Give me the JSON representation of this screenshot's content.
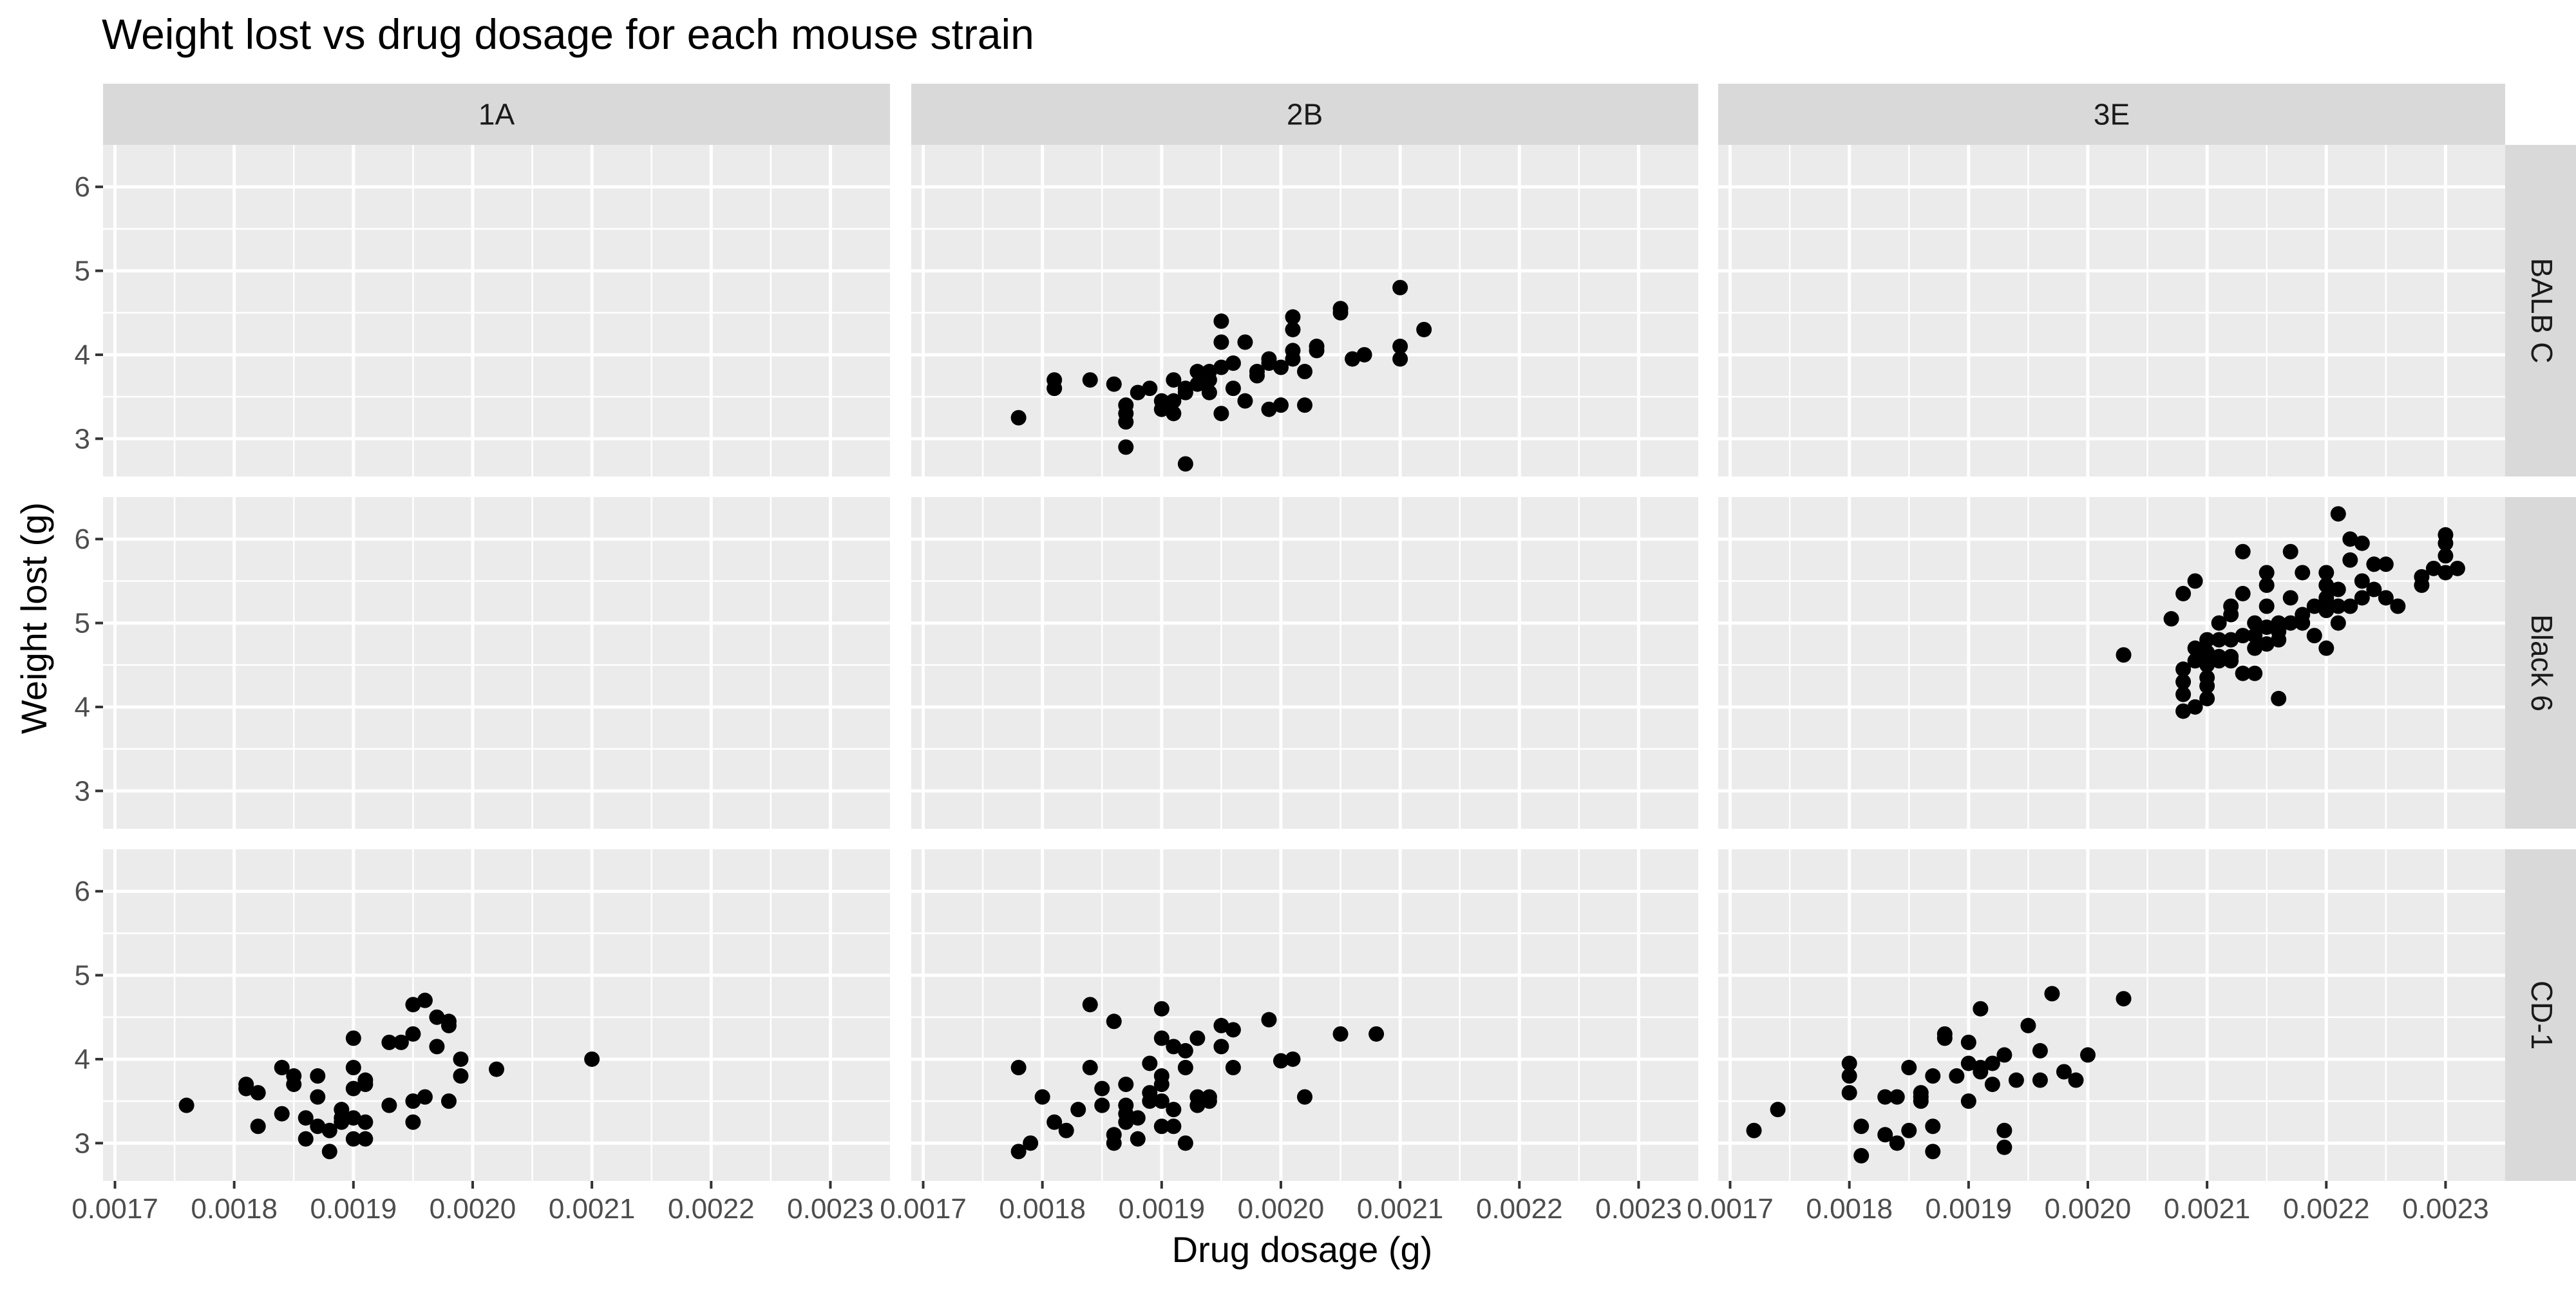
{
  "chart_data": {
    "type": "scatter",
    "title": "Weight lost vs drug dosage for each mouse strain",
    "xlabel": "Drug dosage (g)",
    "ylabel": "Weight lost (g)",
    "xlim": [
      0.00169,
      0.00235
    ],
    "ylim": [
      2.55,
      6.5
    ],
    "x_ticks": [
      0.0017,
      0.0018,
      0.0019,
      0.002,
      0.0021,
      0.0022,
      0.0023
    ],
    "x_tick_labels": [
      "0.0017",
      "0.0018",
      "0.0019",
      "0.0020",
      "0.0021",
      "0.0022",
      "0.0023"
    ],
    "y_ticks": [
      3,
      4,
      5,
      6
    ],
    "y_tick_labels": [
      "3",
      "4",
      "5",
      "6"
    ],
    "grid": true,
    "facet_columns": [
      "1A",
      "2B",
      "3E"
    ],
    "facet_rows": [
      "BALB C",
      "Black 6",
      "CD-1"
    ],
    "panels": [
      {
        "row": "BALB C",
        "col": "1A",
        "x": [],
        "y": []
      },
      {
        "row": "BALB C",
        "col": "2B",
        "x": [
          0.00178,
          0.00181,
          0.00181,
          0.00184,
          0.00186,
          0.00187,
          0.00187,
          0.00187,
          0.00187,
          0.00188,
          0.00189,
          0.0019,
          0.0019,
          0.00191,
          0.00191,
          0.00191,
          0.00192,
          0.00192,
          0.00193,
          0.00193,
          0.00194,
          0.00194,
          0.00195,
          0.00195,
          0.00195,
          0.00195,
          0.00196,
          0.00196,
          0.00197,
          0.00197,
          0.00198,
          0.00198,
          0.00199,
          0.00199,
          0.00199,
          0.002,
          0.002,
          0.00201,
          0.00201,
          0.00201,
          0.00201,
          0.00202,
          0.00202,
          0.00203,
          0.00203,
          0.00205,
          0.00205,
          0.00206,
          0.00207,
          0.0021,
          0.0021,
          0.0021,
          0.00212,
          0.00192,
          0.00194
        ],
        "y": [
          3.25,
          3.7,
          3.6,
          3.7,
          3.65,
          3.4,
          3.3,
          3.2,
          2.9,
          3.55,
          3.6,
          3.45,
          3.35,
          3.7,
          3.3,
          3.45,
          3.55,
          2.7,
          3.8,
          3.65,
          3.7,
          3.55,
          4.4,
          4.15,
          3.85,
          3.3,
          3.9,
          3.6,
          4.15,
          3.45,
          3.8,
          3.75,
          3.95,
          3.9,
          3.35,
          3.4,
          3.85,
          4.45,
          4.3,
          3.95,
          4.05,
          3.8,
          3.4,
          4.1,
          4.05,
          4.55,
          4.5,
          3.95,
          4.0,
          4.8,
          4.1,
          3.95,
          4.3,
          3.6,
          3.8
        ]
      },
      {
        "row": "BALB C",
        "col": "3E",
        "x": [],
        "y": []
      },
      {
        "row": "Black 6",
        "col": "1A",
        "x": [],
        "y": []
      },
      {
        "row": "Black 6",
        "col": "2B",
        "x": [],
        "y": []
      },
      {
        "row": "Black 6",
        "col": "3E",
        "x": [
          0.00203,
          0.00207,
          0.00208,
          0.00208,
          0.00208,
          0.00208,
          0.00208,
          0.00209,
          0.00209,
          0.00209,
          0.0021,
          0.0021,
          0.0021,
          0.0021,
          0.0021,
          0.0021,
          0.00211,
          0.00211,
          0.00211,
          0.00212,
          0.00212,
          0.00212,
          0.00213,
          0.00213,
          0.00213,
          0.00213,
          0.00214,
          0.00214,
          0.00214,
          0.00215,
          0.00215,
          0.00215,
          0.00215,
          0.00215,
          0.00216,
          0.00216,
          0.00216,
          0.00217,
          0.00217,
          0.00217,
          0.00218,
          0.00218,
          0.00219,
          0.00219,
          0.0022,
          0.0022,
          0.0022,
          0.0022,
          0.0022,
          0.00221,
          0.00221,
          0.00221,
          0.00221,
          0.00222,
          0.00222,
          0.00222,
          0.00223,
          0.00223,
          0.00223,
          0.00224,
          0.00224,
          0.00225,
          0.00225,
          0.00226,
          0.00228,
          0.00228,
          0.00229,
          0.0023,
          0.0023,
          0.0023,
          0.0023,
          0.00231,
          0.0021,
          0.00211,
          0.00212,
          0.00214,
          0.00216,
          0.00218,
          0.00212,
          0.00209
        ],
        "y": [
          4.62,
          5.05,
          5.35,
          4.45,
          4.3,
          4.15,
          3.95,
          5.5,
          4.7,
          4.55,
          4.8,
          4.65,
          4.5,
          4.35,
          4.25,
          4.1,
          4.8,
          4.6,
          4.55,
          4.8,
          5.2,
          4.55,
          5.85,
          5.35,
          4.85,
          4.4,
          4.7,
          4.85,
          4.4,
          5.6,
          5.45,
          5.2,
          4.95,
          4.75,
          4.9,
          5.0,
          4.1,
          5.85,
          5.3,
          5.0,
          5.6,
          5.0,
          5.2,
          4.85,
          5.6,
          5.45,
          5.3,
          5.15,
          4.7,
          6.3,
          5.4,
          5.2,
          5.0,
          6.0,
          5.75,
          5.2,
          5.95,
          5.5,
          5.3,
          5.7,
          5.4,
          5.7,
          5.3,
          5.2,
          5.55,
          5.45,
          5.65,
          6.05,
          5.95,
          5.8,
          5.6,
          5.65,
          4.6,
          5.0,
          5.1,
          5.0,
          4.8,
          5.1,
          4.6,
          4.0
        ]
      },
      {
        "row": "CD-1",
        "col": "1A",
        "x": [
          0.00176,
          0.00181,
          0.00181,
          0.00182,
          0.00184,
          0.00184,
          0.00185,
          0.00186,
          0.00186,
          0.00187,
          0.00187,
          0.00188,
          0.00188,
          0.00189,
          0.00189,
          0.0019,
          0.0019,
          0.0019,
          0.0019,
          0.0019,
          0.00191,
          0.00191,
          0.00191,
          0.00191,
          0.00193,
          0.00193,
          0.00194,
          0.00195,
          0.00195,
          0.00195,
          0.00195,
          0.00196,
          0.00196,
          0.00197,
          0.00197,
          0.00198,
          0.00198,
          0.00198,
          0.00199,
          0.00199,
          0.00202,
          0.0021,
          0.00182,
          0.00185,
          0.00187,
          0.00189
        ],
        "y": [
          3.45,
          3.7,
          3.65,
          3.2,
          3.9,
          3.35,
          3.7,
          3.3,
          3.05,
          3.8,
          3.55,
          3.15,
          2.9,
          3.3,
          3.25,
          4.25,
          3.9,
          3.65,
          3.3,
          3.05,
          3.7,
          3.75,
          3.25,
          3.05,
          4.2,
          3.45,
          4.2,
          4.65,
          4.3,
          3.5,
          3.25,
          4.7,
          3.55,
          4.5,
          4.15,
          4.4,
          4.45,
          3.5,
          4.0,
          3.8,
          3.88,
          4.0,
          3.6,
          3.8,
          3.2,
          3.4
        ]
      },
      {
        "row": "CD-1",
        "col": "2B",
        "x": [
          0.00178,
          0.00178,
          0.00179,
          0.0018,
          0.00181,
          0.00182,
          0.00183,
          0.00184,
          0.00184,
          0.00185,
          0.00185,
          0.00186,
          0.00186,
          0.00186,
          0.00187,
          0.00187,
          0.00187,
          0.00188,
          0.00188,
          0.00189,
          0.00189,
          0.0019,
          0.0019,
          0.0019,
          0.0019,
          0.0019,
          0.0019,
          0.00191,
          0.00191,
          0.00191,
          0.00192,
          0.00192,
          0.00193,
          0.00193,
          0.00193,
          0.00194,
          0.00194,
          0.00195,
          0.00195,
          0.00196,
          0.00196,
          0.00199,
          0.002,
          0.00201,
          0.00202,
          0.00205,
          0.00208,
          0.00187,
          0.00189,
          0.00192
        ],
        "y": [
          3.9,
          2.9,
          3.0,
          3.55,
          3.25,
          3.15,
          3.4,
          4.65,
          3.9,
          3.45,
          3.65,
          4.45,
          3.1,
          3.0,
          3.7,
          3.45,
          3.25,
          3.3,
          3.05,
          3.5,
          3.95,
          4.6,
          4.25,
          3.8,
          3.5,
          3.2,
          3.7,
          4.15,
          3.4,
          3.2,
          4.1,
          3.0,
          4.25,
          3.55,
          3.45,
          3.55,
          3.5,
          4.4,
          4.15,
          3.9,
          4.35,
          4.47,
          3.98,
          4.0,
          3.55,
          4.3,
          4.3,
          3.35,
          3.6,
          3.9
        ]
      },
      {
        "row": "CD-1",
        "col": "3E",
        "x": [
          0.00172,
          0.00174,
          0.0018,
          0.0018,
          0.0018,
          0.00181,
          0.00181,
          0.00183,
          0.00183,
          0.00184,
          0.00185,
          0.00185,
          0.00186,
          0.00186,
          0.00187,
          0.00187,
          0.00187,
          0.00188,
          0.00189,
          0.0019,
          0.0019,
          0.0019,
          0.00191,
          0.00191,
          0.00192,
          0.00192,
          0.00193,
          0.00193,
          0.00193,
          0.00194,
          0.00195,
          0.00196,
          0.00196,
          0.00197,
          0.00198,
          0.00199,
          0.002,
          0.00203,
          0.00188,
          0.00191,
          0.00186,
          0.00184
        ],
        "y": [
          3.15,
          3.4,
          3.95,
          3.8,
          3.6,
          3.2,
          2.85,
          3.55,
          3.1,
          3.55,
          3.15,
          3.9,
          3.6,
          3.5,
          3.8,
          3.2,
          2.9,
          4.25,
          3.8,
          3.95,
          3.5,
          4.2,
          3.85,
          4.6,
          3.95,
          3.7,
          4.05,
          3.15,
          2.95,
          3.75,
          4.4,
          3.75,
          4.1,
          4.78,
          3.85,
          3.75,
          4.05,
          4.72,
          4.3,
          3.9,
          3.55,
          3.0
        ]
      }
    ]
  }
}
